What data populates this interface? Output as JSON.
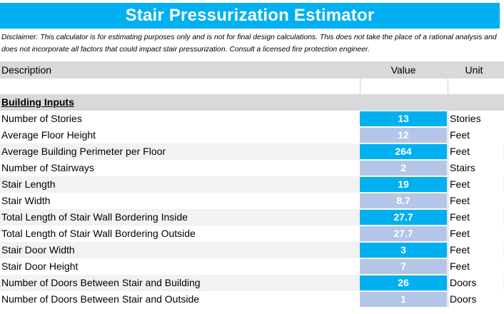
{
  "title": "Stair Pressurization Estimator",
  "disclaimer": "Disclaimer: This calculator is for estimating purposes only and is not for final design calculations. This does not take the place of a rational analysis and does not incorporate all factors that could impact stair pressurization. Consult a licensed fire protection engineer.",
  "headers": {
    "description": "Description",
    "value": "Value",
    "unit": "Unit"
  },
  "section": "Building Inputs",
  "colors": {
    "title_bg": "#00b0f0",
    "value_primary": "#00b0f0",
    "value_secondary": "#b4c6e7",
    "header_bg": "#d9d9d9"
  },
  "rows": [
    {
      "description": "Number of Stories",
      "value": "13",
      "unit": "Stories"
    },
    {
      "description": "Average Floor Height",
      "value": "12",
      "unit": "Feet"
    },
    {
      "description": "Average Building Perimeter per Floor",
      "value": "264",
      "unit": "Feet"
    },
    {
      "description": "Number of Stairways",
      "value": "2",
      "unit": "Stairs"
    },
    {
      "description": "Stair Length",
      "value": "19",
      "unit": "Feet"
    },
    {
      "description": "Stair Width",
      "value": "8.7",
      "unit": "Feet"
    },
    {
      "description": "Total Length of Stair Wall Bordering Inside",
      "value": "27.7",
      "unit": "Feet"
    },
    {
      "description": "Total Length of Stair Wall Bordering Outside",
      "value": "27.7",
      "unit": "Feet"
    },
    {
      "description": "Stair Door Width",
      "value": "3",
      "unit": "Feet"
    },
    {
      "description": "Stair Door Height",
      "value": "7",
      "unit": "Feet"
    },
    {
      "description": "Number of Doors Between Stair and Building",
      "value": "26",
      "unit": "Doors"
    },
    {
      "description": "Number of Doors Between Stair and Outside",
      "value": "1",
      "unit": "Doors"
    }
  ]
}
